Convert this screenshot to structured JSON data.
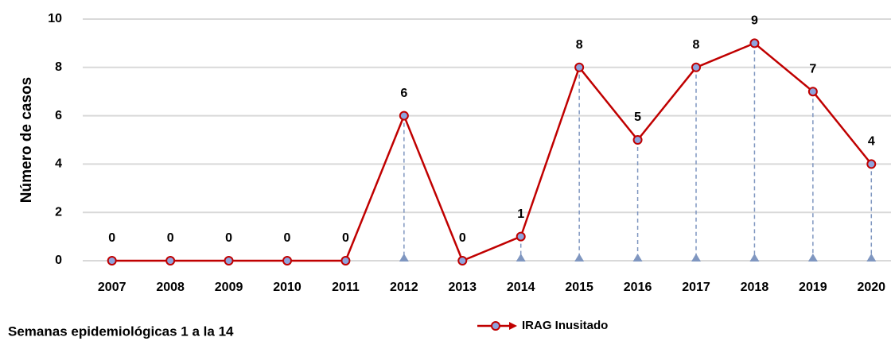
{
  "chart_data": {
    "type": "line",
    "y_label": "Número de casos",
    "x_label": "Semanas epidemiológicas 1 a la 14",
    "categories": [
      "2007",
      "2008",
      "2009",
      "2010",
      "2011",
      "2012",
      "2013",
      "2014",
      "2015",
      "2016",
      "2017",
      "2018",
      "2019",
      "2020"
    ],
    "series": [
      {
        "name": "IRAG Inusitado",
        "color": "#c00000",
        "values": [
          0,
          0,
          0,
          0,
          0,
          6,
          0,
          1,
          8,
          5,
          8,
          9,
          7,
          4
        ]
      }
    ],
    "ylim": [
      0,
      10
    ],
    "yticks": [
      0,
      2,
      4,
      6,
      8,
      10
    ],
    "grid": true,
    "legend": "bottom"
  }
}
